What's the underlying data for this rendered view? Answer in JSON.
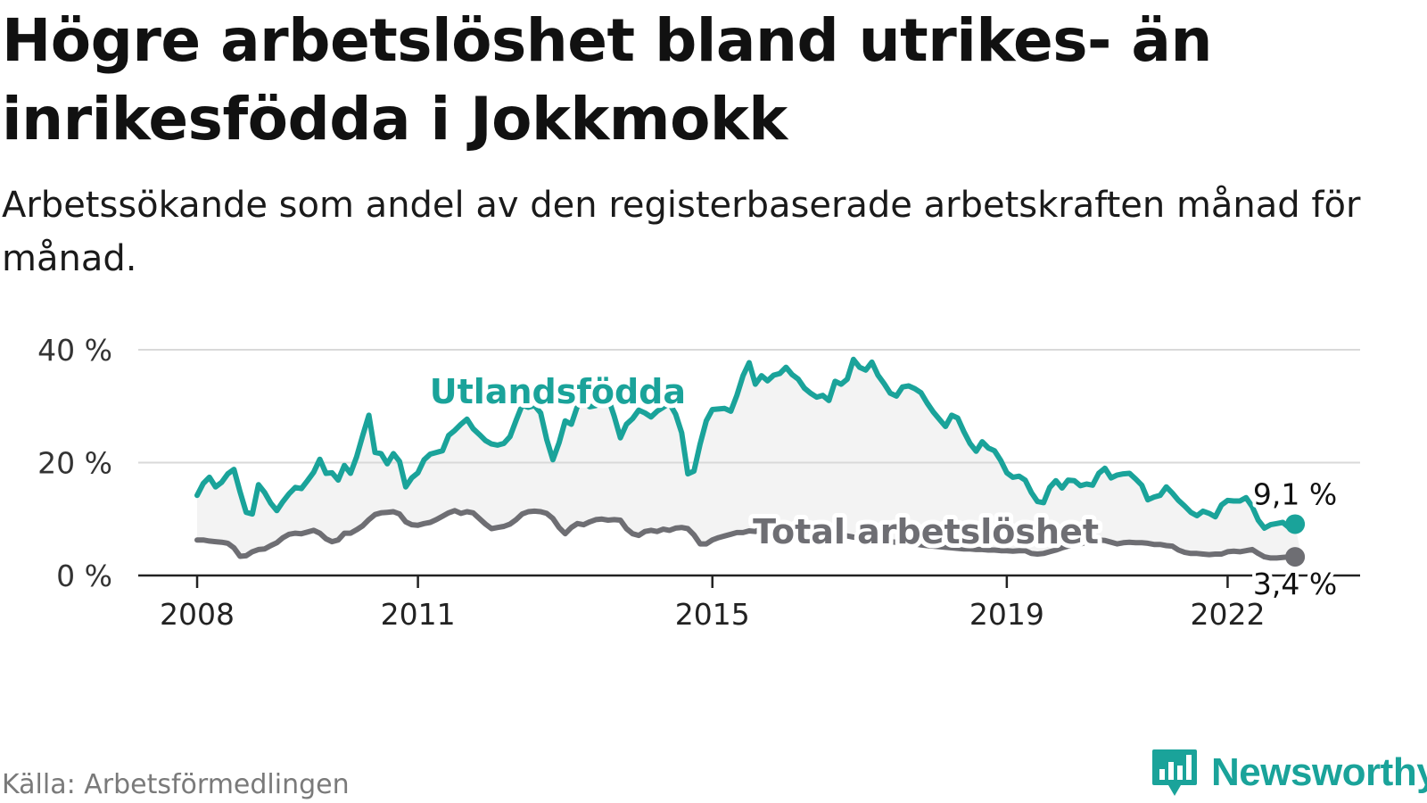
{
  "title": "Högre arbetslöshet bland utrikes- än inrikesfödda i Jokkmokk",
  "subtitle": "Arbetssökande som andel av den registerbaserade arbetskraften månad för månad.",
  "source": "Källa: Arbetsförmedlingen",
  "brand": "Newsworthy",
  "colors": {
    "foreign": "#1aa39a",
    "total": "#6e6e73",
    "band": "#f3f3f3",
    "grid": "#d9d9d9",
    "axis": "#222222"
  },
  "chart_data": {
    "type": "line",
    "x_start": 2008.0,
    "x_step_months": 1,
    "xlim": [
      2007.2,
      2023.8
    ],
    "ylim": [
      0,
      40
    ],
    "y_ticks": [
      0,
      20,
      40
    ],
    "y_tick_labels": [
      "0 %",
      "20 %",
      "40 %"
    ],
    "x_ticks": [
      2008,
      2011,
      2015,
      2019,
      2022
    ],
    "x_tick_labels": [
      "2008",
      "2011",
      "2015",
      "2019",
      "2022"
    ],
    "grid": true,
    "series": [
      {
        "name": "Utlandsfödda",
        "label": "Utlandsfödda",
        "end_label": "9,1 %",
        "values": [
          14.2,
          16.3,
          17.4,
          15.7,
          16.5,
          18.0,
          18.8,
          14.8,
          11.2,
          10.9,
          16.1,
          14.7,
          12.8,
          11.5,
          13.1,
          14.5,
          15.6,
          15.4,
          16.8,
          18.3,
          20.6,
          18.1,
          18.2,
          16.9,
          19.5,
          18.1,
          21.0,
          24.8,
          28.4,
          21.8,
          21.6,
          19.8,
          21.6,
          20.2,
          15.7,
          17.3,
          18.2,
          20.5,
          21.5,
          21.8,
          22.1,
          24.8,
          25.7,
          26.8,
          27.7,
          26.0,
          25.0,
          23.9,
          23.3,
          23.1,
          23.4,
          24.6,
          27.5,
          30.2,
          29.8,
          30.1,
          28.8,
          24.1,
          20.5,
          23.5,
          27.4,
          26.8,
          30.0,
          30.8,
          29.9,
          30.1,
          30.8,
          31.5,
          28.2,
          24.4,
          26.8,
          27.8,
          29.3,
          28.8,
          28.1,
          29.1,
          29.8,
          30.5,
          28.6,
          25.3,
          18.0,
          18.5,
          23.3,
          27.4,
          29.4,
          29.5,
          29.6,
          29.1,
          31.9,
          35.4,
          37.7,
          33.9,
          35.4,
          34.5,
          35.5,
          35.8,
          36.9,
          35.6,
          34.8,
          33.2,
          32.3,
          31.6,
          31.9,
          31.0,
          34.4,
          33.9,
          34.8,
          38.3,
          36.9,
          36.4,
          37.8,
          35.5,
          34.0,
          32.3,
          31.8,
          33.4,
          33.6,
          33.1,
          32.4,
          30.6,
          29.0,
          27.7,
          26.4,
          28.4,
          27.9,
          25.5,
          23.4,
          22.0,
          23.7,
          22.6,
          22.1,
          20.4,
          18.2,
          17.4,
          17.6,
          16.9,
          14.7,
          13.1,
          12.9,
          15.6,
          16.8,
          15.5,
          16.9,
          16.8,
          15.9,
          16.2,
          16.0,
          18.1,
          19.0,
          17.3,
          17.8,
          18.0,
          18.1,
          17.1,
          16.0,
          13.4,
          13.9,
          14.2,
          15.7,
          14.6,
          13.3,
          12.3,
          11.2,
          10.6,
          11.4,
          11.0,
          10.4,
          12.5,
          13.3,
          13.2,
          13.2,
          13.8,
          12.2,
          9.8,
          8.4,
          9.0,
          9.2,
          9.4,
          8.5,
          9.1
        ]
      },
      {
        "name": "Total arbetslöshet",
        "label": "Total arbetslöshet",
        "end_label": "3,4 %",
        "values": [
          6.3,
          6.3,
          6.1,
          6.0,
          5.9,
          5.7,
          4.9,
          3.4,
          3.5,
          4.2,
          4.6,
          4.7,
          5.3,
          5.8,
          6.7,
          7.3,
          7.5,
          7.4,
          7.7,
          8.0,
          7.5,
          6.5,
          6.0,
          6.3,
          7.5,
          7.5,
          8.1,
          8.8,
          9.9,
          10.8,
          11.1,
          11.2,
          11.3,
          10.9,
          9.5,
          9.0,
          8.9,
          9.2,
          9.4,
          9.9,
          10.5,
          11.1,
          11.5,
          11.0,
          11.3,
          11.1,
          10.1,
          9.1,
          8.3,
          8.5,
          8.7,
          9.1,
          9.9,
          10.9,
          11.3,
          11.4,
          11.3,
          11.0,
          10.1,
          8.5,
          7.4,
          8.5,
          9.2,
          9.0,
          9.5,
          9.9,
          10.0,
          9.8,
          9.9,
          9.8,
          8.3,
          7.4,
          7.1,
          7.8,
          8.0,
          7.8,
          8.2,
          8.0,
          8.4,
          8.5,
          8.3,
          7.2,
          5.6,
          5.6,
          6.3,
          6.7,
          7.0,
          7.3,
          7.6,
          7.6,
          7.9,
          7.8,
          8.3,
          8.2,
          6.6,
          7.0,
          7.4,
          7.5,
          7.7,
          7.8,
          7.9,
          7.8,
          7.6,
          7.4,
          7.2,
          7.1,
          7.0,
          6.8,
          6.7,
          6.6,
          6.4,
          6.3,
          6.1,
          6.0,
          5.9,
          5.8,
          5.7,
          5.6,
          5.4,
          5.3,
          5.2,
          5.1,
          5.0,
          4.9,
          4.8,
          4.7,
          4.7,
          4.6,
          4.6,
          4.5,
          4.5,
          4.4,
          4.4,
          4.3,
          4.4,
          4.4,
          3.9,
          3.8,
          3.9,
          4.2,
          4.5,
          4.9,
          5.2,
          5.4,
          5.6,
          5.9,
          6.1,
          6.3,
          6.2,
          5.9,
          5.6,
          5.8,
          5.9,
          5.8,
          5.8,
          5.7,
          5.5,
          5.5,
          5.3,
          5.2,
          4.5,
          4.1,
          3.9,
          3.9,
          3.8,
          3.7,
          3.8,
          3.8,
          4.2,
          4.3,
          4.2,
          4.4,
          4.6,
          3.9,
          3.3,
          3.1,
          3.1,
          3.2,
          3.3,
          3.3,
          3.4
        ]
      }
    ]
  }
}
